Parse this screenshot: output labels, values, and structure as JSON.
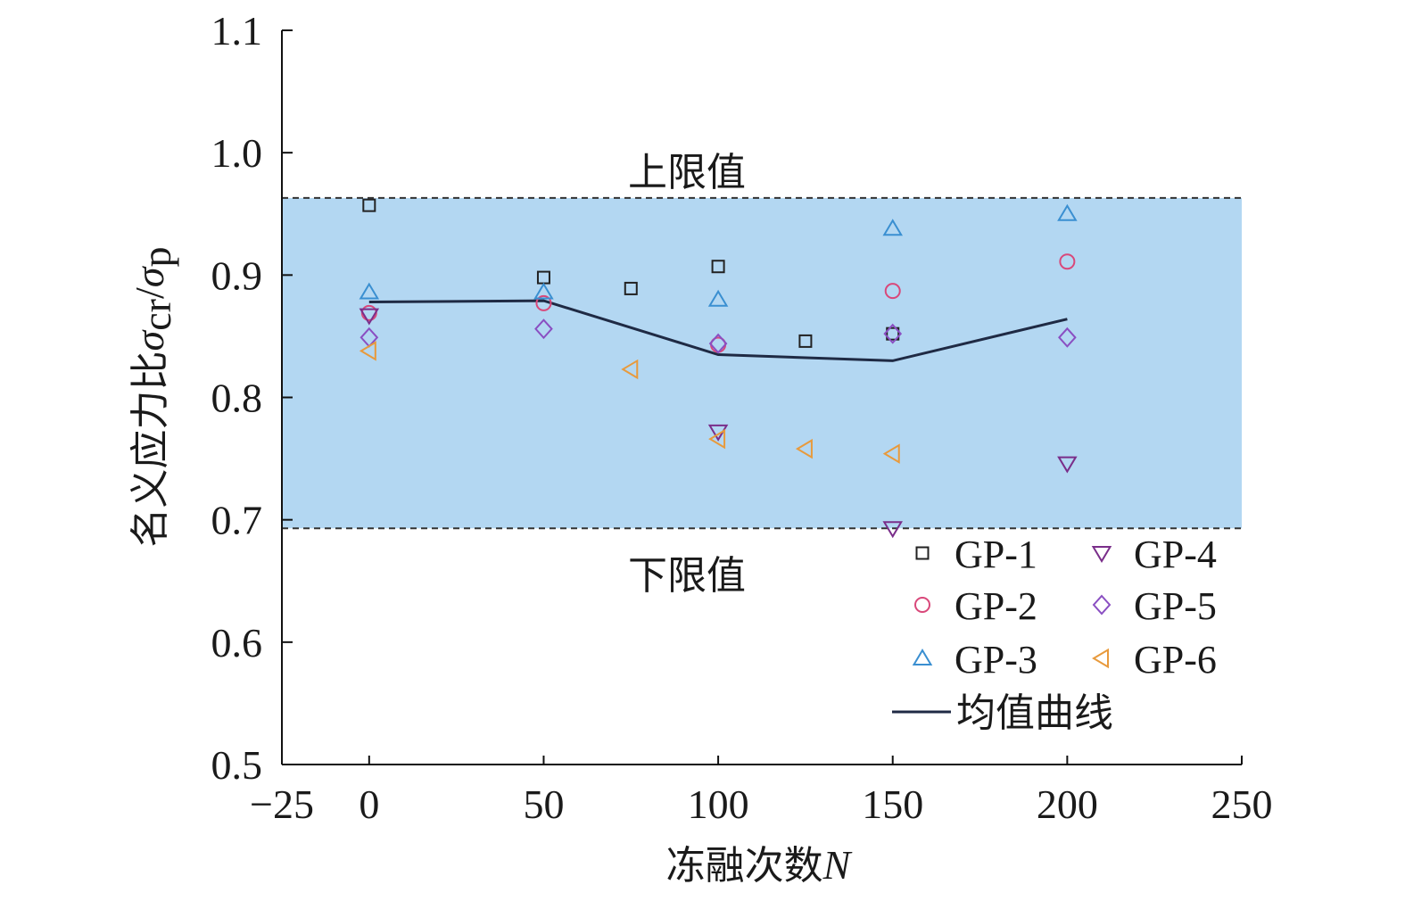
{
  "chart_data": {
    "type": "scatter",
    "xlabel": "冻融次数",
    "xlabel_var": "N",
    "ylabel_prefix": "名义应力比",
    "ylabel_sym1": "σ",
    "ylabel_sub1": "cr",
    "ylabel_slash": "/",
    "ylabel_sym2": "σ",
    "ylabel_sub2": "p",
    "xlim": [
      -25,
      250
    ],
    "ylim": [
      0.5,
      1.1
    ],
    "xticks": [
      -25,
      0,
      50,
      100,
      150,
      200,
      250
    ],
    "xtick_labels": [
      "−25",
      "0",
      "50",
      "100",
      "150",
      "200",
      "250"
    ],
    "yticks": [
      0.5,
      0.6,
      0.7,
      0.8,
      0.9,
      1.0,
      1.1
    ],
    "ytick_labels": [
      "0.5",
      "0.6",
      "0.7",
      "0.8",
      "0.9",
      "1.0",
      "1.1"
    ],
    "band": {
      "lower": 0.693,
      "upper": 0.963,
      "color": "#b3d7f2",
      "upper_label": "上限值",
      "lower_label": "下限值"
    },
    "series": [
      {
        "name": "GP-1",
        "marker": "square",
        "color": "#222222",
        "points": [
          [
            0,
            0.957
          ],
          [
            50,
            0.898
          ],
          [
            75,
            0.889
          ],
          [
            100,
            0.907
          ],
          [
            125,
            0.846
          ],
          [
            150,
            0.852
          ]
        ]
      },
      {
        "name": "GP-2",
        "marker": "circle",
        "color": "#d9487a",
        "points": [
          [
            0,
            0.869
          ],
          [
            50,
            0.877
          ],
          [
            100,
            0.843
          ],
          [
            150,
            0.887
          ],
          [
            200,
            0.911
          ]
        ]
      },
      {
        "name": "GP-3",
        "marker": "triangle-up",
        "color": "#3a8fd1",
        "points": [
          [
            0,
            0.886
          ],
          [
            50,
            0.886
          ],
          [
            100,
            0.88
          ],
          [
            150,
            0.938
          ],
          [
            200,
            0.95
          ]
        ]
      },
      {
        "name": "GP-4",
        "marker": "triangle-down",
        "color": "#7a2e8a",
        "points": [
          [
            0,
            0.867
          ],
          [
            100,
            0.772
          ],
          [
            150,
            0.693
          ],
          [
            200,
            0.746
          ]
        ]
      },
      {
        "name": "GP-5",
        "marker": "diamond",
        "color": "#8a4fc2",
        "points": [
          [
            0,
            0.849
          ],
          [
            50,
            0.856
          ],
          [
            100,
            0.844
          ],
          [
            150,
            0.852
          ],
          [
            200,
            0.849
          ]
        ]
      },
      {
        "name": "GP-6",
        "marker": "triangle-left",
        "color": "#e89a3c",
        "points": [
          [
            0,
            0.838
          ],
          [
            75,
            0.823
          ],
          [
            100,
            0.766
          ],
          [
            125,
            0.758
          ],
          [
            150,
            0.754
          ]
        ]
      }
    ],
    "mean_curve": {
      "name": "均值曲线",
      "color": "#1f2a44",
      "points": [
        [
          0,
          0.878
        ],
        [
          50,
          0.879
        ],
        [
          100,
          0.835
        ],
        [
          150,
          0.83
        ],
        [
          200,
          0.864
        ]
      ]
    },
    "legend_position": "bottom-right"
  }
}
